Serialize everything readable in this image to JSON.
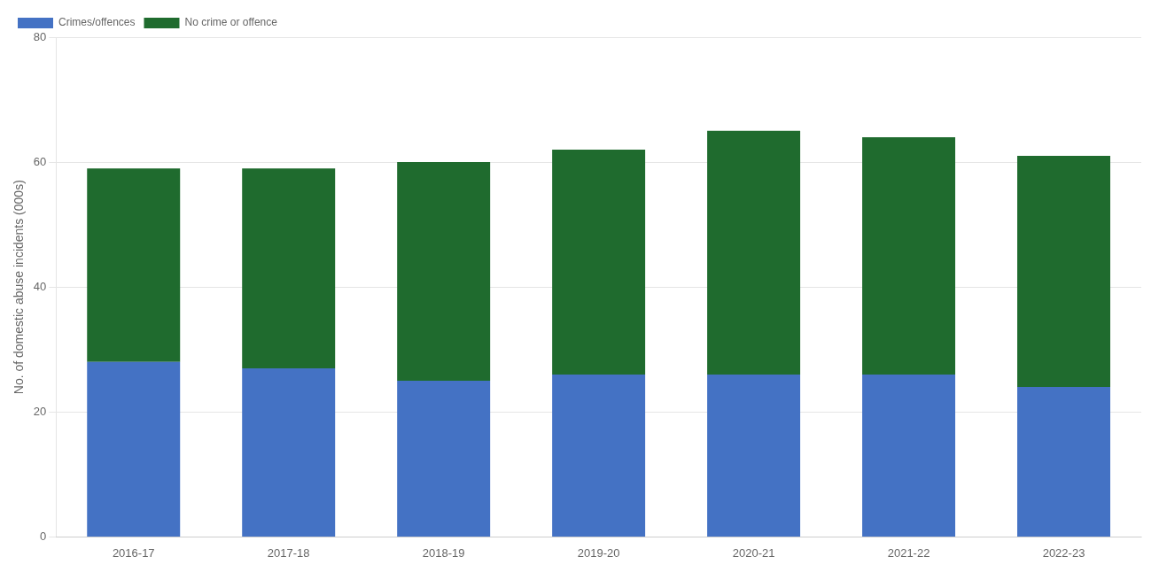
{
  "chart_data": {
    "type": "bar",
    "stacked": true,
    "ylabel": "No. of domestic abuse incidents (000s)",
    "categories": [
      "2016-17",
      "2017-18",
      "2018-19",
      "2019-20",
      "2020-21",
      "2021-22",
      "2022-23"
    ],
    "series": [
      {
        "name": "Crimes/offences",
        "color": "#4472C4",
        "values": [
          28,
          27,
          25,
          26,
          26,
          26,
          24
        ]
      },
      {
        "name": "No crime or offence",
        "color": "#1F6B2E",
        "values": [
          31,
          32,
          35,
          36,
          39,
          38,
          37
        ]
      }
    ],
    "ylim": [
      0,
      80
    ],
    "yticks": [
      0,
      20,
      40,
      60,
      80
    ],
    "grid": true,
    "legend": "upper left"
  }
}
